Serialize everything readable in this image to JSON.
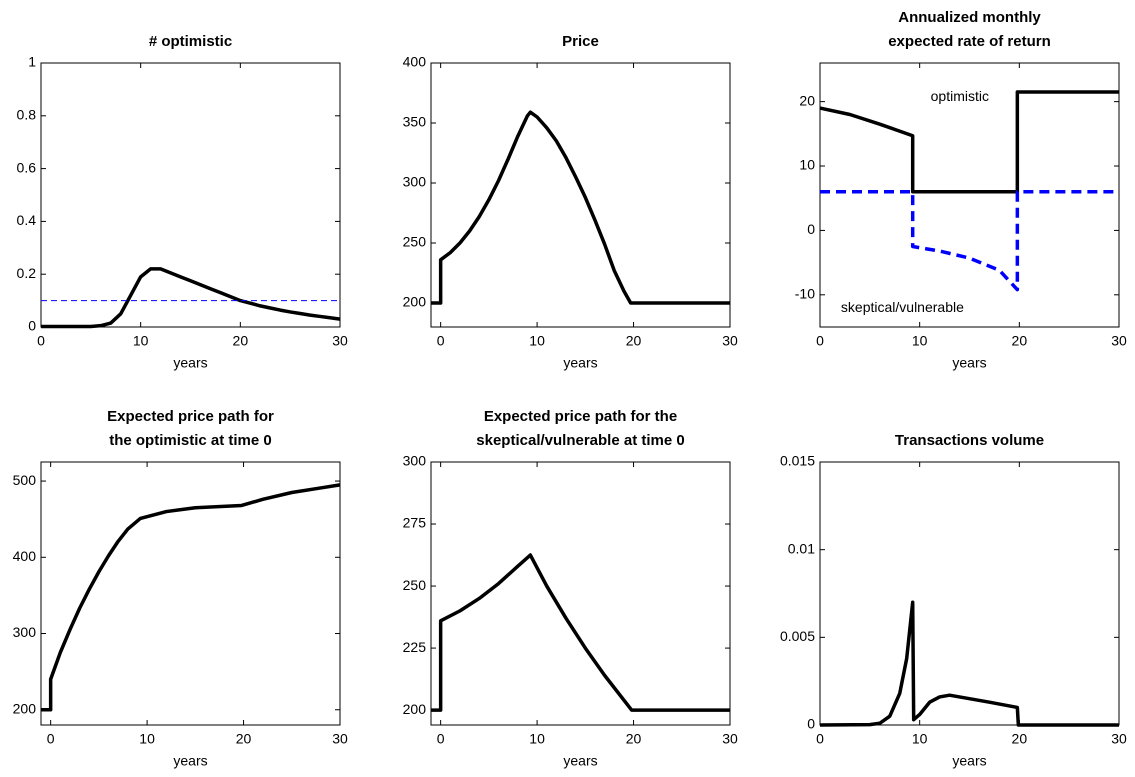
{
  "chart_data": [
    {
      "type": "line",
      "title": [
        "# optimistic"
      ],
      "xlabel": "years",
      "xlim": [
        0,
        30
      ],
      "xticks": [
        0,
        10,
        20,
        30
      ],
      "ylim": [
        0,
        1
      ],
      "yticks": [
        0,
        0.2,
        0.4,
        0.6,
        0.8,
        1
      ],
      "series": [
        {
          "color": "#000000",
          "linestyle": "solid",
          "linewidth": 3.5,
          "x": [
            0,
            1,
            2,
            3,
            4,
            5,
            6,
            7,
            8,
            9,
            10,
            11,
            12,
            13,
            14,
            15,
            16,
            17,
            18,
            19,
            20,
            21,
            22,
            23,
            24,
            25,
            26,
            27,
            28,
            29,
            30
          ],
          "values": [
            0.002,
            0.002,
            0.002,
            0.002,
            0.002,
            0.002,
            0.005,
            0.015,
            0.05,
            0.12,
            0.19,
            0.22,
            0.22,
            0.205,
            0.19,
            0.175,
            0.16,
            0.145,
            0.13,
            0.115,
            0.1,
            0.09,
            0.08,
            0.072,
            0.064,
            0.057,
            0.051,
            0.045,
            0.04,
            0.035,
            0.03
          ]
        },
        {
          "color": "#0000ff",
          "linestyle": "dashed",
          "linewidth": 1,
          "x": [
            0,
            30
          ],
          "values": [
            0.1,
            0.1
          ]
        }
      ]
    },
    {
      "type": "line",
      "title": [
        "Price"
      ],
      "xlabel": "years",
      "xlim": [
        -1,
        30
      ],
      "xticks": [
        0,
        10,
        20,
        30
      ],
      "ylim": [
        180,
        400
      ],
      "yticks": [
        200,
        250,
        300,
        350,
        400
      ],
      "series": [
        {
          "color": "#000000",
          "linestyle": "solid",
          "linewidth": 3.5,
          "x": [
            -1,
            0,
            0,
            1,
            2,
            3,
            4,
            5,
            6,
            7,
            8,
            9,
            9.3,
            10,
            11,
            12,
            13,
            14,
            15,
            16,
            17,
            18,
            19,
            19.7,
            30
          ],
          "values": [
            200,
            200,
            236,
            242,
            250,
            260,
            272,
            286,
            302,
            320,
            339,
            356,
            359,
            355,
            346,
            335,
            321,
            305,
            288,
            269,
            249,
            227,
            210,
            200,
            200
          ]
        }
      ]
    },
    {
      "type": "line",
      "title": [
        "Annualized monthly",
        "expected rate of return"
      ],
      "xlabel": "years",
      "xlim": [
        0,
        30
      ],
      "xticks": [
        0,
        10,
        20,
        30
      ],
      "ylim": [
        -15,
        26
      ],
      "yticks": [
        -10,
        0,
        10,
        20
      ],
      "annotations": [
        "optimistic",
        "skeptical/vulnerable"
      ],
      "series": [
        {
          "color": "#000000",
          "linestyle": "solid",
          "linewidth": 3.5,
          "x": [
            0,
            3,
            6,
            9.3,
            9.3,
            19.8,
            19.8,
            30
          ],
          "values": [
            19,
            18,
            16.5,
            14.7,
            6,
            6,
            21.5,
            21.5
          ]
        },
        {
          "color": "#0000ff",
          "linestyle": "dashed",
          "linewidth": 3.5,
          "x": [
            0,
            9.3,
            9.3,
            12,
            15,
            18,
            19.8,
            19.8,
            30
          ],
          "values": [
            6,
            6,
            -2.5,
            -3.2,
            -4.3,
            -6.2,
            -9.2,
            6,
            6
          ]
        }
      ]
    },
    {
      "type": "line",
      "title": [
        "Expected price path for",
        "the optimistic at time 0"
      ],
      "xlabel": "years",
      "xlim": [
        -1,
        30
      ],
      "xticks": [
        0,
        10,
        20,
        30
      ],
      "ylim": [
        180,
        525
      ],
      "yticks": [
        200,
        300,
        400,
        500
      ],
      "series": [
        {
          "color": "#000000",
          "linestyle": "solid",
          "linewidth": 3.5,
          "x": [
            -1,
            0,
            0,
            1,
            2,
            3,
            4,
            5,
            6,
            7,
            8,
            9.3,
            12,
            15,
            19.8,
            22,
            25,
            28,
            30
          ],
          "values": [
            200,
            200,
            240,
            275,
            305,
            333,
            358,
            381,
            402,
            421,
            437,
            451,
            460,
            465,
            468,
            476,
            485,
            491,
            495
          ]
        }
      ]
    },
    {
      "type": "line",
      "title": [
        "Expected price path for the",
        "skeptical/vulnerable at time 0"
      ],
      "xlabel": "years",
      "xlim": [
        -1,
        30
      ],
      "xticks": [
        0,
        10,
        20,
        30
      ],
      "ylim": [
        194,
        300
      ],
      "yticks": [
        200,
        225,
        250,
        275,
        300
      ],
      "series": [
        {
          "color": "#000000",
          "linestyle": "solid",
          "linewidth": 3.5,
          "x": [
            -1,
            0,
            0,
            2,
            4,
            6,
            8,
            9.3,
            11,
            13,
            15,
            17,
            19.8,
            30
          ],
          "values": [
            200,
            200,
            236,
            240,
            245,
            251,
            258,
            262.5,
            250,
            237,
            225,
            214,
            200,
            200
          ]
        }
      ]
    },
    {
      "type": "line",
      "title": [
        "Transactions volume"
      ],
      "xlabel": "years",
      "xlim": [
        0,
        30
      ],
      "xticks": [
        0,
        10,
        20,
        30
      ],
      "ylim": [
        0,
        0.015
      ],
      "yticks": [
        0,
        0.005,
        0.01,
        0.015
      ],
      "series": [
        {
          "color": "#000000",
          "linestyle": "solid",
          "linewidth": 3.5,
          "x": [
            0,
            5,
            6,
            7,
            8,
            8.7,
            9.3,
            9.4,
            10,
            11,
            12,
            13,
            15,
            17,
            19.8,
            19.9,
            30
          ],
          "values": [
            0,
            2e-05,
            0.0001,
            0.0005,
            0.0018,
            0.0038,
            0.007,
            0.0003,
            0.0006,
            0.0013,
            0.0016,
            0.0017,
            0.0015,
            0.0013,
            0.001,
            0,
            0
          ]
        }
      ]
    }
  ]
}
